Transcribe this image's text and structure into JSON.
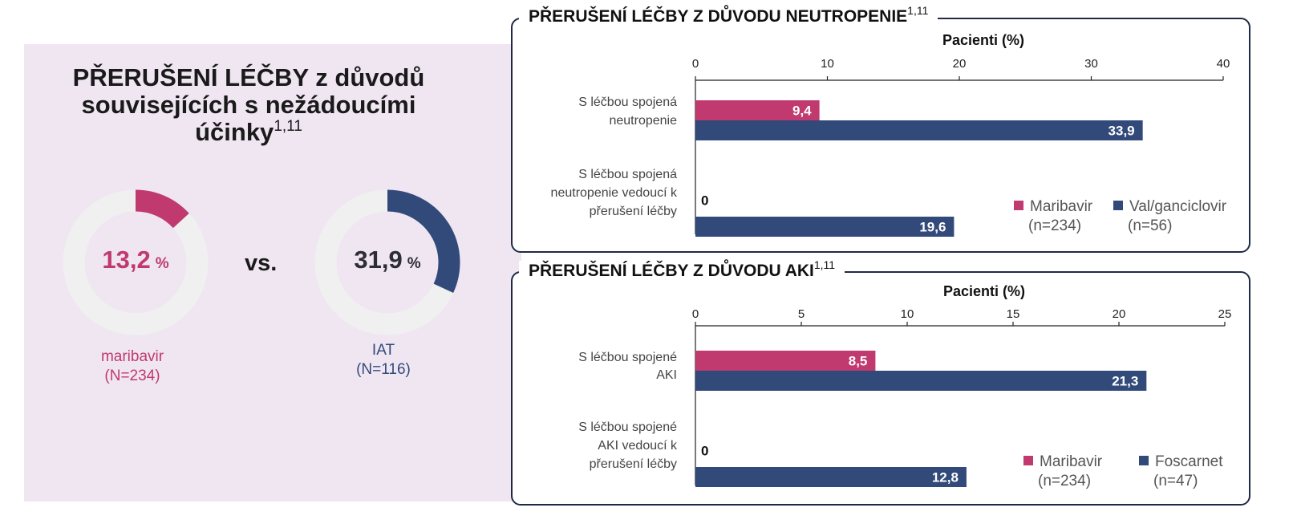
{
  "colors": {
    "maribavir": "#c0396f",
    "comparator": "#324a7a",
    "donut_track": "#f0f0f0",
    "panel_bg": "#efe6f2",
    "panel_border": "#1f2a44"
  },
  "left": {
    "title_line1": "PŘERUŠENÍ LÉČBY z důvodů",
    "title_line2": "souvisejících s nežádoucími",
    "title_line3": "účinky",
    "title_sup": "1,11",
    "vs": "vs.",
    "donuts": [
      {
        "value": 13.2,
        "value_text": "13,2",
        "unit": "%",
        "label": "maribavir",
        "n": "(N=234)",
        "color": "#c0396f"
      },
      {
        "value": 31.9,
        "value_text": "31,9",
        "unit": "%",
        "label": "IAT",
        "n": "(N=116)",
        "color": "#324a7a"
      }
    ]
  },
  "chart_data": [
    {
      "type": "bar",
      "orientation": "horizontal",
      "title": "PŘERUŠENÍ LÉČBY Z DŮVODU NEUTROPENIE",
      "title_sup": "1,11",
      "xlabel": "Pacienti (%)",
      "xlim": [
        0,
        40
      ],
      "ticks": [
        0,
        10,
        20,
        30,
        40
      ],
      "categories": [
        [
          "S léčbou spojená",
          "neutropenie"
        ],
        [
          "S léčbou spojená",
          "neutropenie vedoucí k",
          "přerušení léčby"
        ]
      ],
      "series": [
        {
          "name": "Maribavir",
          "n": "(n=234)",
          "color": "#c0396f",
          "values": [
            9.4,
            0
          ],
          "labels": [
            "9,4",
            "0"
          ]
        },
        {
          "name": "Val/ganciclovir",
          "n": "(n=56)",
          "color": "#324a7a",
          "values": [
            33.9,
            19.6
          ],
          "labels": [
            "33,9",
            "19,6"
          ]
        }
      ],
      "legend": "bottom-right"
    },
    {
      "type": "bar",
      "orientation": "horizontal",
      "title": "PŘERUŠENÍ LÉČBY Z DŮVODU AKI",
      "title_sup": "1,11",
      "xlabel": "Pacienti (%)",
      "xlim": [
        0,
        25
      ],
      "ticks": [
        0,
        5,
        10,
        15,
        20,
        25
      ],
      "categories": [
        [
          "S léčbou spojené",
          "AKI"
        ],
        [
          "S léčbou spojené",
          "AKI vedoucí k",
          "přerušení léčby"
        ]
      ],
      "series": [
        {
          "name": "Maribavir",
          "n": "(n=234)",
          "color": "#c0396f",
          "values": [
            8.5,
            0
          ],
          "labels": [
            "8,5",
            "0"
          ]
        },
        {
          "name": "Foscarnet",
          "n": "(n=47)",
          "color": "#324a7a",
          "values": [
            21.3,
            12.8
          ],
          "labels": [
            "21,3",
            "12,8"
          ]
        }
      ],
      "legend": "bottom-right"
    }
  ]
}
